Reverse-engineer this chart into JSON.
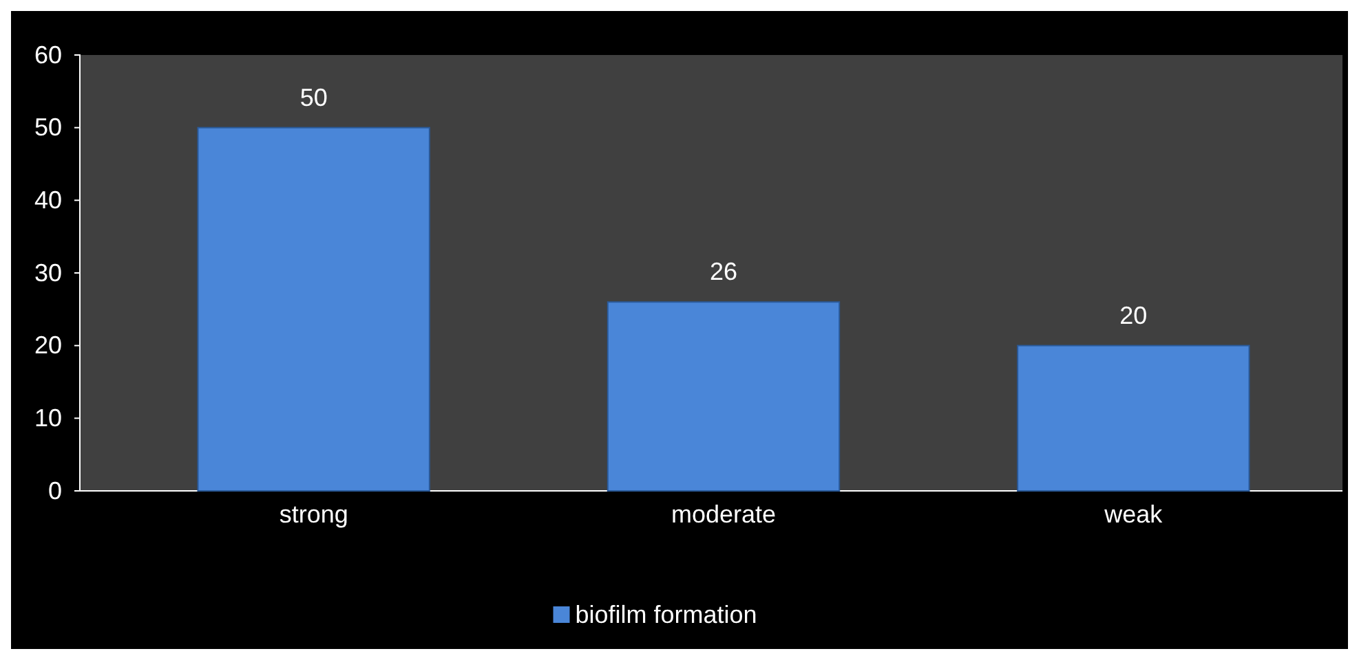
{
  "chart_data": {
    "type": "bar",
    "categories": [
      "strong",
      "moderate",
      "weak"
    ],
    "series": [
      {
        "name": "biofilm formation",
        "color": "#4a86d8",
        "values": [
          50,
          26,
          20
        ]
      }
    ],
    "ylim": [
      0,
      60
    ],
    "yticks": [
      0,
      10,
      20,
      30,
      40,
      50,
      60
    ],
    "data_labels": true,
    "legend": "bottom",
    "grid": false
  }
}
